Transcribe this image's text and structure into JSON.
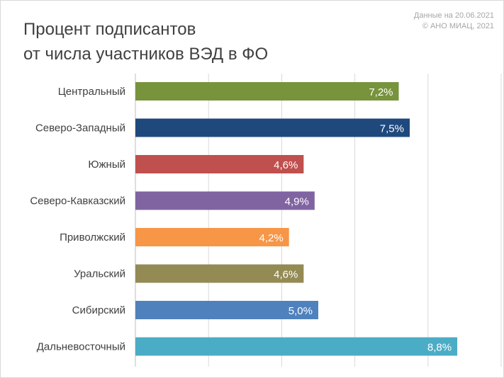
{
  "header": {
    "title_line1": "Процент подписантов",
    "title_line2": "от числа участников ВЭД в ФО",
    "source_line1": "Данные на 20.06.2021",
    "source_line2": "© АНО МИАЦ, 2021"
  },
  "chart_data": {
    "type": "bar",
    "orientation": "horizontal",
    "title": "Процент подписантов от числа участников ВЭД в ФО",
    "categories": [
      "Центральный",
      "Северо-Западный",
      "Южный",
      "Северо-Кавказский",
      "Приволжский",
      "Уральский",
      "Сибирский",
      "Дальневосточный"
    ],
    "values": [
      7.2,
      7.5,
      4.6,
      4.9,
      4.2,
      4.6,
      5.0,
      8.8
    ],
    "value_labels": [
      "7,2%",
      "7,5%",
      "4,6%",
      "4,9%",
      "4,2%",
      "4,6%",
      "5,0%",
      "8,8%"
    ],
    "colors": [
      "#77933c",
      "#1f497d",
      "#c0504d",
      "#8064a2",
      "#f79646",
      "#948a54",
      "#4f81bd",
      "#4bacc6"
    ],
    "xlim": [
      0,
      10
    ],
    "grid": true,
    "legend": "none"
  }
}
